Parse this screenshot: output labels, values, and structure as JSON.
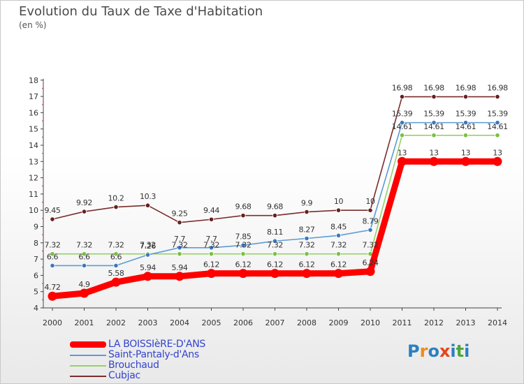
{
  "title": "Evolution du Taux de Taxe d'Habitation",
  "subtitle": "(en %)",
  "logo": {
    "letters": [
      "P",
      "r",
      "o",
      "x",
      "i",
      "t",
      "i"
    ],
    "colors": [
      "#2c7fc0",
      "#f08a1c",
      "#2c7fc0",
      "#e8421c",
      "#2c7fc0",
      "#4aa83a",
      "#2c7fc0"
    ]
  },
  "chart_data": {
    "type": "line",
    "x": [
      "2000",
      "2001",
      "2002",
      "2003",
      "2004",
      "2005",
      "2006",
      "2007",
      "2008",
      "2009",
      "2010",
      "2011",
      "2012",
      "2013",
      "2014"
    ],
    "ylim": [
      4,
      18
    ],
    "yticks": [
      "4",
      "5",
      "6",
      "7",
      "8",
      "9",
      "10",
      "11",
      "12",
      "13",
      "14",
      "15",
      "16",
      "17",
      "18"
    ],
    "grid": false,
    "legend_position": "bottom-left",
    "series": [
      {
        "name": "LA BOISSIèRE-D'ANS",
        "color": "#ff0000",
        "values": [
          4.72,
          4.9,
          5.58,
          5.94,
          5.94,
          6.12,
          6.12,
          6.12,
          6.12,
          6.12,
          6.24,
          13,
          13,
          13,
          13
        ],
        "labels": [
          "4.72",
          "4.9",
          "5.58",
          "5.94",
          "5.94",
          "6.12",
          "6.12",
          "6.12",
          "6.12",
          "6.12",
          "6.24",
          "13",
          "13",
          "13",
          "13"
        ]
      },
      {
        "name": "Saint-Pantaly-d'Ans",
        "color": "#5b9bd5",
        "marker": "#3a78c0",
        "values": [
          6.6,
          6.6,
          6.6,
          7.26,
          7.7,
          7.7,
          7.85,
          8.11,
          8.27,
          8.45,
          8.79,
          15.39,
          15.39,
          15.39,
          15.39
        ],
        "labels": [
          "6.6",
          "6.6",
          "6.6",
          "7.26",
          "7.7",
          "7.7",
          "7.85",
          "8.11",
          "8.27",
          "8.45",
          "8.79",
          "15.39",
          "15.39",
          "15.39",
          "15.39"
        ]
      },
      {
        "name": "Brouchaud",
        "color": "#99d066",
        "marker": "#7ac043",
        "values": [
          7.32,
          7.32,
          7.32,
          7.32,
          7.32,
          7.32,
          7.32,
          7.32,
          7.32,
          7.32,
          7.32,
          14.61,
          14.61,
          14.61,
          14.61
        ],
        "labels": [
          "7.32",
          "7.32",
          "7.32",
          "7.32",
          "7.32",
          "7.32",
          "7.32",
          "7.32",
          "7.32",
          "7.32",
          "7.32",
          "14.61",
          "14.61",
          "14.61",
          "14.61"
        ]
      },
      {
        "name": "Cubjac",
        "color": "#7a2c2c",
        "marker": "#6a1e1e",
        "values": [
          9.45,
          9.92,
          10.2,
          10.3,
          9.25,
          9.44,
          9.68,
          9.68,
          9.9,
          10,
          10,
          16.98,
          16.98,
          16.98,
          16.98
        ],
        "labels": [
          "9.45",
          "9.92",
          "10.2",
          "10.3",
          "9.25",
          "9.44",
          "9.68",
          "9.68",
          "9.9",
          "10",
          "10",
          "16.98",
          "16.98",
          "16.98",
          "16.98"
        ]
      }
    ]
  }
}
